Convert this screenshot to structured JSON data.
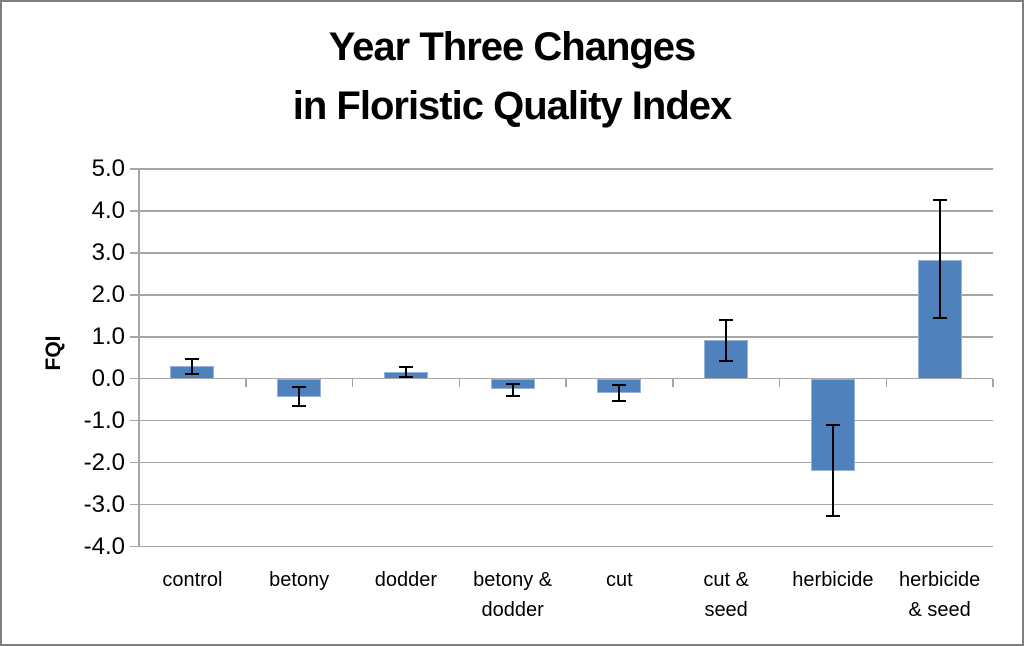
{
  "chart_data": {
    "type": "bar",
    "title_lines": [
      "Year Three Changes",
      "in Floristic Quality Index"
    ],
    "title": "Year Three Changes in Floristic Quality Index",
    "xlabel": "",
    "ylabel": "FQI",
    "categories": [
      "control",
      "betony",
      "dodder",
      "betony &\ndodder",
      "cut",
      "cut &\nseed",
      "herbicide",
      "herbicide\n& seed"
    ],
    "values": [
      0.3,
      -0.43,
      0.17,
      -0.25,
      -0.35,
      0.92,
      -2.2,
      2.83
    ],
    "error_low": [
      0.12,
      -0.66,
      0.05,
      -0.4,
      -0.52,
      0.43,
      -3.28,
      1.44
    ],
    "error_high": [
      0.48,
      -0.2,
      0.29,
      -0.12,
      -0.15,
      1.4,
      -1.1,
      4.26
    ],
    "ylim": [
      -4.0,
      5.0
    ],
    "ytick_step": 1.0,
    "ytick_labels": [
      "5.0",
      "4.0",
      "3.0",
      "2.0",
      "1.0",
      "0.0",
      "-1.0",
      "-2.0",
      "-3.0",
      "-4.0"
    ],
    "grid": true,
    "legend_position": "none",
    "colors": {
      "bar_fill": "#4f81bd",
      "bar_border": "#95b3d7",
      "gridline": "#a6a6a6",
      "axis": "#a6a6a6",
      "error_bar": "#000000",
      "text": "#000000",
      "frame_border": "#7f7f7f",
      "background": "#ffffff"
    }
  }
}
